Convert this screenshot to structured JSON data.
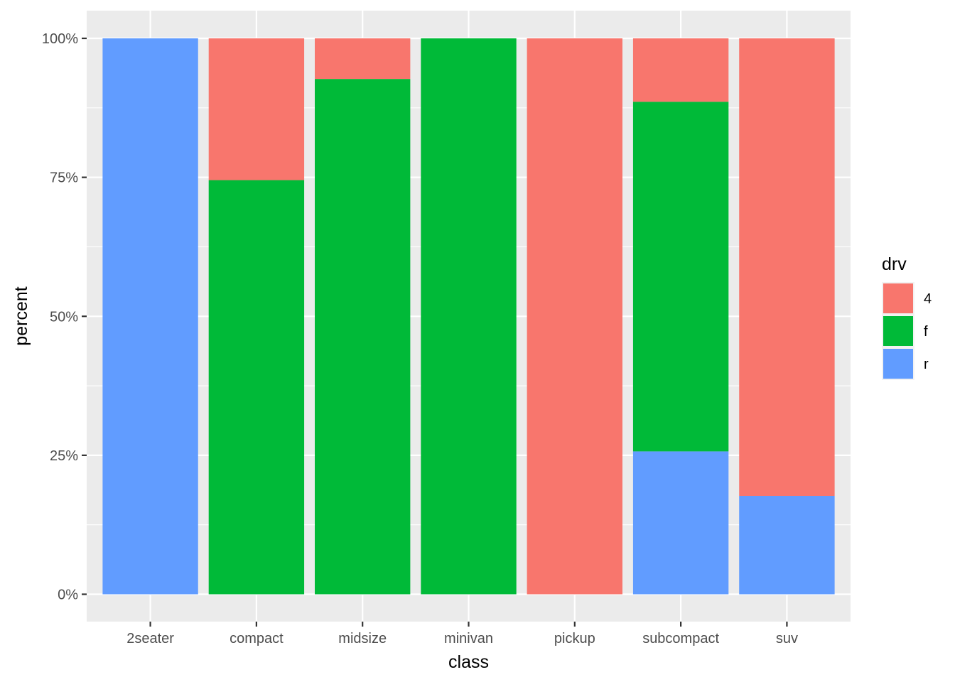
{
  "chart_data": {
    "type": "bar",
    "stacked": "fill",
    "xlabel": "class",
    "ylabel": "percent",
    "ylim": [
      0,
      1
    ],
    "y_ticks": [
      {
        "value": 0,
        "label": "0%"
      },
      {
        "value": 0.25,
        "label": "25%"
      },
      {
        "value": 0.5,
        "label": "50%"
      },
      {
        "value": 0.75,
        "label": "75%"
      },
      {
        "value": 1,
        "label": "100%"
      }
    ],
    "grid": true,
    "legend": {
      "title": "drv",
      "position": "right"
    },
    "categories": [
      "2seater",
      "compact",
      "midsize",
      "minivan",
      "pickup",
      "subcompact",
      "suv"
    ],
    "series": [
      {
        "name": "4",
        "color": "#F8766D",
        "values": [
          0,
          0.255,
          0.073,
          0,
          1,
          0.114,
          0.823
        ]
      },
      {
        "name": "f",
        "color": "#00BA38",
        "values": [
          0,
          0.745,
          0.927,
          1,
          0,
          0.629,
          0
        ]
      },
      {
        "name": "r",
        "color": "#619CFF",
        "values": [
          1,
          0,
          0,
          0,
          0,
          0.257,
          0.177
        ]
      }
    ]
  }
}
